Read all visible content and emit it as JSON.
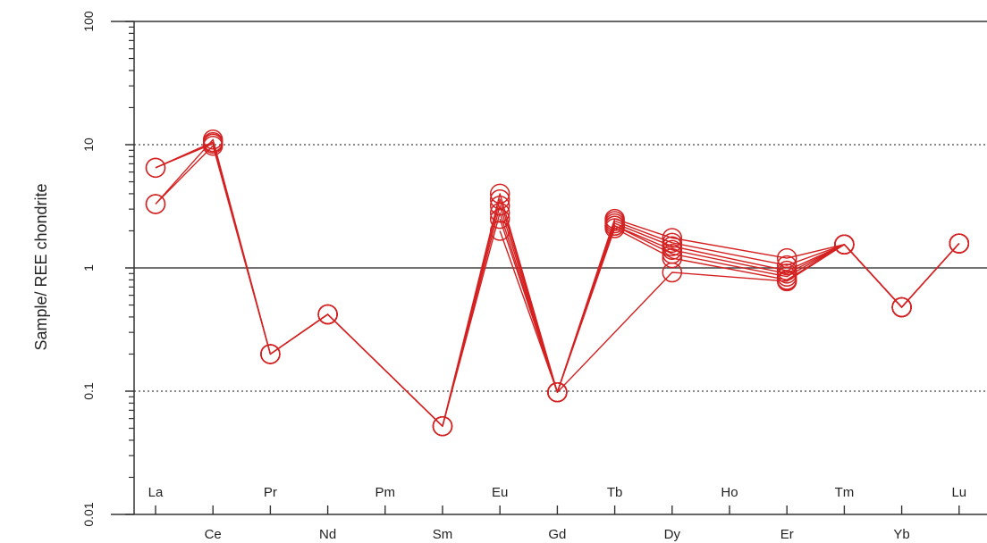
{
  "chart_data": {
    "type": "line",
    "title": "",
    "xlabel": "",
    "ylabel": "Sample/ REE chondrite",
    "yscale": "log",
    "ylim": [
      0.01,
      100
    ],
    "y_ticks": [
      "0.01",
      "0.1",
      "1",
      "10",
      "100"
    ],
    "gridlines": [
      {
        "value": 10,
        "style": "dotted"
      },
      {
        "value": 1,
        "style": "solid"
      },
      {
        "value": 0.1,
        "style": "dotted"
      }
    ],
    "categories": [
      "La",
      "Ce",
      "Pr",
      "Nd",
      "Pm",
      "Sm",
      "Eu",
      "Gd",
      "Tb",
      "Dy",
      "Ho",
      "Er",
      "Tm",
      "Yb",
      "Lu"
    ],
    "line_color": "#d42020",
    "series": [
      {
        "values": [
          6.5,
          10.5,
          0.2,
          0.42,
          null,
          0.052,
          4.0,
          0.098,
          2.5,
          1.75,
          null,
          1.2,
          1.55,
          0.48,
          1.58
        ]
      },
      {
        "values": [
          6.5,
          10.2,
          0.2,
          0.42,
          null,
          0.052,
          3.6,
          0.098,
          2.4,
          1.6,
          null,
          1.05,
          1.55,
          0.48,
          1.58
        ]
      },
      {
        "values": [
          3.3,
          11.0,
          0.2,
          0.42,
          null,
          0.052,
          3.2,
          0.098,
          2.3,
          1.5,
          null,
          0.95,
          1.55,
          0.48,
          1.58
        ]
      },
      {
        "values": [
          3.3,
          9.8,
          0.2,
          0.42,
          null,
          0.052,
          2.8,
          0.098,
          2.2,
          1.4,
          null,
          0.9,
          1.55,
          0.48,
          1.58
        ]
      },
      {
        "values": [
          null,
          null,
          null,
          null,
          null,
          null,
          2.5,
          0.098,
          2.2,
          1.3,
          null,
          0.85,
          1.55,
          0.48,
          1.58
        ]
      },
      {
        "values": [
          null,
          null,
          null,
          null,
          null,
          null,
          2.0,
          0.098,
          2.1,
          1.2,
          null,
          0.8,
          1.55,
          0.48,
          1.58
        ]
      },
      {
        "values": [
          null,
          null,
          null,
          null,
          null,
          null,
          null,
          0.098,
          null,
          0.92,
          null,
          0.78,
          1.55,
          null,
          null
        ]
      }
    ]
  }
}
